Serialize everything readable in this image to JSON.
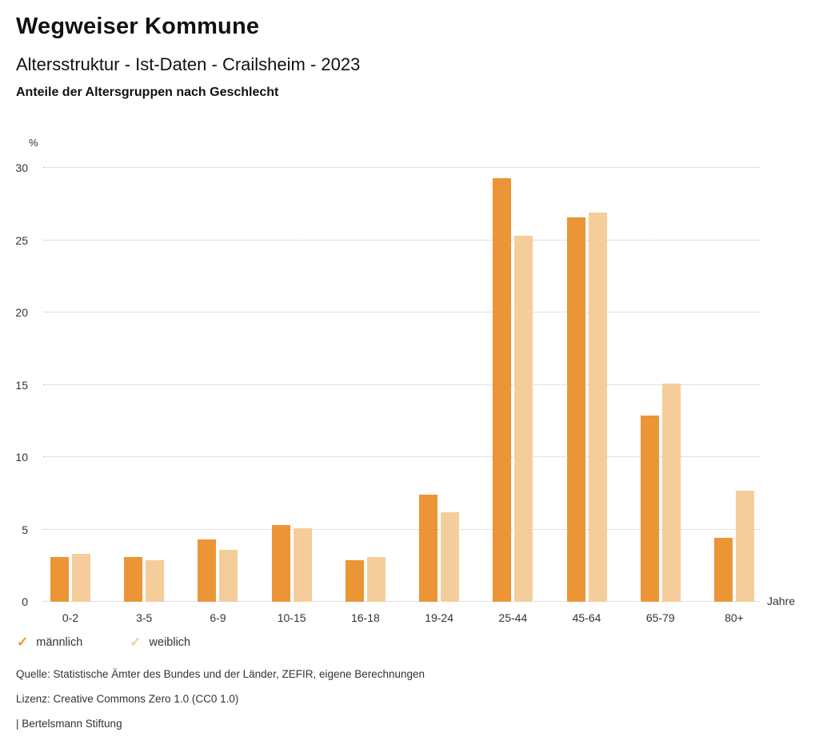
{
  "header": {
    "title": "Wegweiser Kommune",
    "subtitle": "Altersstruktur - Ist-Daten - Crailsheim - 2023",
    "caption": "Anteile der Altersgruppen nach Geschlecht"
  },
  "chart_data": {
    "type": "bar",
    "title": "Anteile der Altersgruppen nach Geschlecht",
    "unit_label": "%",
    "xlabel": "Jahre",
    "categories": [
      "0-2",
      "3-5",
      "6-9",
      "10-15",
      "16-18",
      "19-24",
      "25-44",
      "45-64",
      "65-79",
      "80+"
    ],
    "series": [
      {
        "name": "männlich",
        "color": "#EB9536",
        "values": [
          3.1,
          3.1,
          4.3,
          5.3,
          2.9,
          7.4,
          29.3,
          26.6,
          12.9,
          4.4
        ]
      },
      {
        "name": "weiblich",
        "color": "#F5CD9A",
        "values": [
          3.3,
          2.9,
          3.6,
          5.1,
          3.1,
          6.2,
          25.3,
          26.9,
          15.1,
          7.7
        ]
      }
    ],
    "ylim": [
      0,
      30
    ],
    "yticks": [
      0,
      5,
      10,
      15,
      20,
      25,
      30
    ],
    "grid": "horizontal-dotted",
    "legend_position": "bottom-left"
  },
  "legend": {
    "items": [
      {
        "label": "männlich",
        "color": "#EB9536",
        "icon": "check-icon"
      },
      {
        "label": "weiblich",
        "color": "#F5CD9A",
        "icon": "check-icon"
      }
    ]
  },
  "footer": {
    "source": "Quelle: Statistische Ämter des Bundes und der Länder, ZEFIR, eigene Berechnungen",
    "license": "Lizenz: Creative Commons Zero 1.0 (CC0 1.0)",
    "brand": "| Bertelsmann Stiftung"
  }
}
